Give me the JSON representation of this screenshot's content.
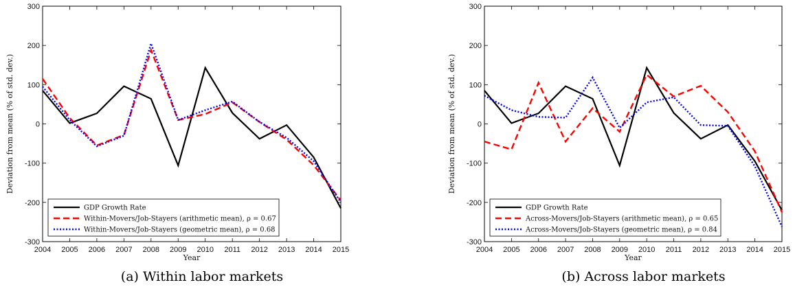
{
  "chart_data": [
    {
      "type": "line",
      "caption": "(a) Within labor markets",
      "xlabel": "Year",
      "ylabel": "Deviation from mean (% of std. dev.)",
      "ylim": [
        -300,
        300
      ],
      "yticks": [
        -300,
        -200,
        -100,
        0,
        100,
        200,
        300
      ],
      "x": [
        2004,
        2005,
        2006,
        2007,
        2008,
        2009,
        2010,
        2011,
        2012,
        2013,
        2014,
        2015
      ],
      "legend_position": "bottom-left",
      "series": [
        {
          "name": "GDP Growth Rate",
          "color": "#000000",
          "style": "solid",
          "values": [
            85,
            2,
            27,
            96,
            64,
            -106,
            143,
            28,
            -38,
            -3,
            -85,
            -215
          ]
        },
        {
          "name": "Within-Movers/Job-Stayers (arithmetic mean), ρ = 0.67",
          "color": "#ff0000",
          "style": "dashed",
          "values": [
            115,
            15,
            -55,
            -28,
            188,
            10,
            25,
            55,
            5,
            -40,
            -105,
            -195
          ]
        },
        {
          "name": "Within-Movers/Job-Stayers (geometric mean), ρ = 0.68",
          "color": "#0000ff",
          "style": "dotted",
          "values": [
            95,
            10,
            -57,
            -30,
            205,
            10,
            35,
            57,
            5,
            -35,
            -95,
            -200
          ]
        }
      ]
    },
    {
      "type": "line",
      "caption": "(b) Across labor markets",
      "xlabel": "Year",
      "ylabel": "Deviation from mean (% of std. dev.)",
      "ylim": [
        -300,
        300
      ],
      "yticks": [
        -300,
        -200,
        -100,
        0,
        100,
        200,
        300
      ],
      "x": [
        2004,
        2005,
        2006,
        2007,
        2008,
        2009,
        2010,
        2011,
        2012,
        2013,
        2014,
        2015
      ],
      "legend_position": "bottom-left",
      "series": [
        {
          "name": "GDP Growth Rate",
          "color": "#000000",
          "style": "solid",
          "values": [
            85,
            2,
            27,
            96,
            64,
            -106,
            143,
            28,
            -38,
            -3,
            -95,
            -220
          ]
        },
        {
          "name": "Across-Movers/Job-Stayers (arithmetic mean), ρ = 0.65",
          "color": "#ff0000",
          "style": "dashed",
          "values": [
            -45,
            -65,
            105,
            -45,
            40,
            -20,
            125,
            70,
            97,
            30,
            -70,
            -225
          ]
        },
        {
          "name": "Across-Movers/Job-Stayers (geometric mean), ρ = 0.84",
          "color": "#0000ff",
          "style": "dotted",
          "values": [
            72,
            35,
            18,
            16,
            118,
            -10,
            55,
            68,
            -3,
            -5,
            -108,
            -262
          ]
        }
      ]
    }
  ]
}
